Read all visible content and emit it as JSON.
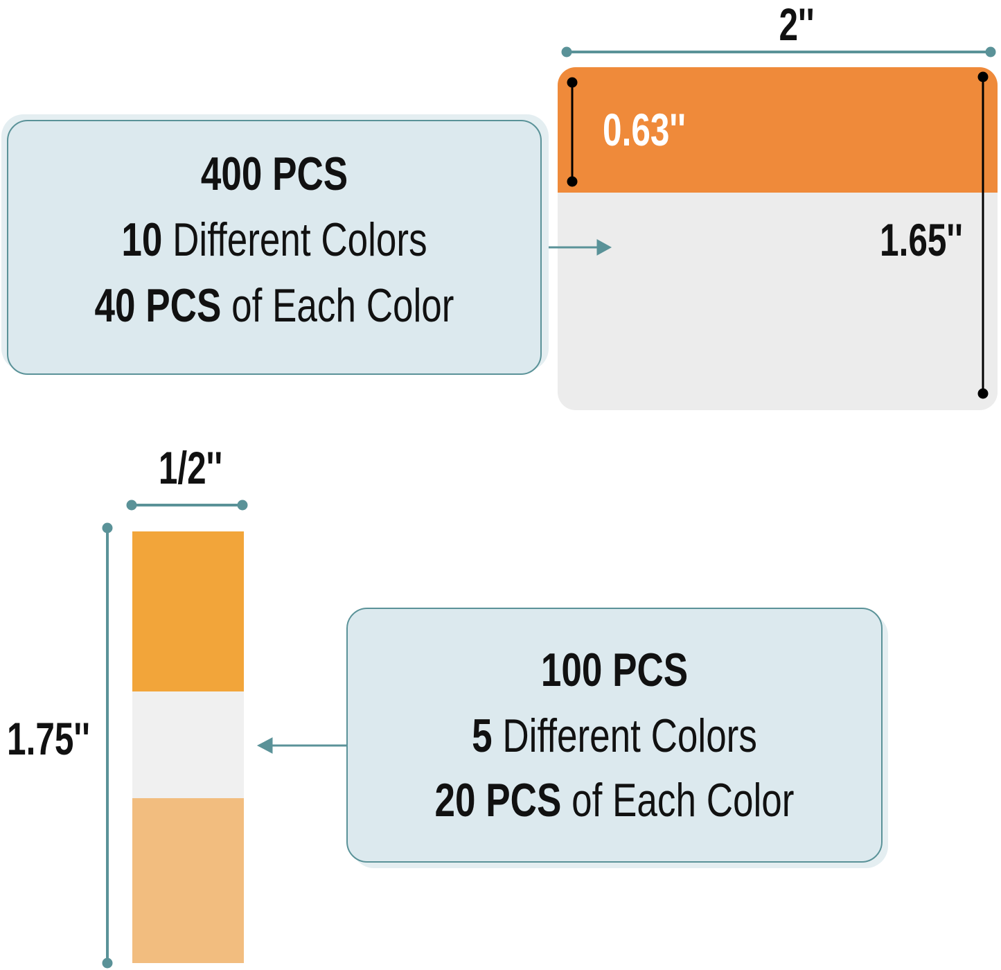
{
  "colors": {
    "teal": "#5a9298",
    "box_bg": "#dce9ee",
    "tab_orange": "#ef8a3a",
    "strip_orange": "#f2a53a",
    "strip_light_orange": "#f2bd7f",
    "tab_white": "#ececec"
  },
  "large_tab": {
    "box": {
      "line1": "400 PCS",
      "line2_num": "10",
      "line2_text": " Different Colors",
      "line3_num": "40 PCS",
      "line3_text": " of Each Color"
    },
    "width_label": "2''",
    "color_height_label": "0.63''",
    "height_label": "1.65''"
  },
  "small_tab": {
    "box": {
      "line1": "100 PCS",
      "line2_num": "5",
      "line2_text": " Different Colors",
      "line3_num": "20 PCS",
      "line3_text": " of Each Color"
    },
    "width_label": "1/2''",
    "height_label": "1.75''"
  }
}
